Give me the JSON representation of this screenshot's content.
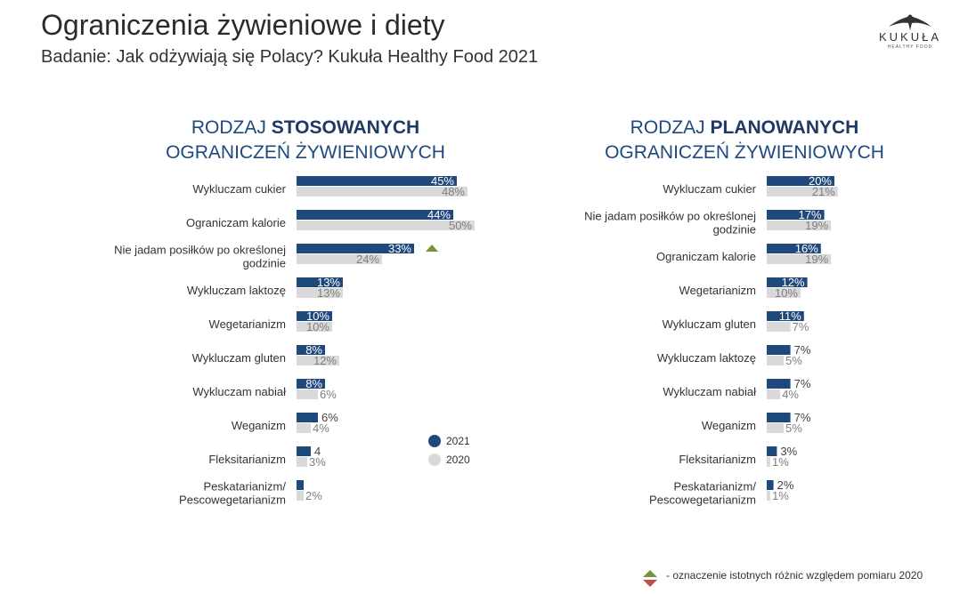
{
  "header": {
    "title": "Ograniczenia żywieniowe i diety",
    "subtitle": "Badanie: Jak odżywiają się Polacy? Kukuła Healthy Food 2021"
  },
  "logo": {
    "name": "KUKUŁA",
    "tagline": "HEALTHY FOOD"
  },
  "colors": {
    "series_2021": "#1f497d",
    "series_2020": "#d9d9d9",
    "significance_up": "#77933c",
    "significance_down": "#c0504d"
  },
  "legend": {
    "label_2021": "2021",
    "label_2020": "2020"
  },
  "footnote": "- oznaczenie istotnych różnic względem pomiaru 2020",
  "chart_data": [
    {
      "type": "bar",
      "orientation": "horizontal",
      "title_prefix": "RODZAJ ",
      "title_bold": "STOSOWANYCH",
      "title_line2": "OGRANICZEŃ ŻYWIENIOWYCH",
      "categories": [
        "Wykluczam cukier",
        "Ograniczam kalorie",
        "Nie jadam posiłków po określonej godzinie",
        "Wykluczam laktozę",
        "Wegetarianizm",
        "Wykluczam gluten",
        "Wykluczam nabiał",
        "Weganizm",
        "Fleksitarianizm",
        "Peskatarianizm/ Pescowegetarianizm"
      ],
      "series": [
        {
          "name": "2021",
          "values": [
            45,
            44,
            33,
            13,
            10,
            8,
            8,
            6,
            4,
            2
          ],
          "labels": [
            "45%",
            "44%",
            "33%",
            "13%",
            "10%",
            "8%",
            "8%",
            "6%",
            "4",
            ""
          ]
        },
        {
          "name": "2020",
          "values": [
            48,
            50,
            24,
            13,
            10,
            12,
            6,
            4,
            3,
            2
          ],
          "labels": [
            "48%",
            "50%",
            "24%",
            "13%",
            "10%",
            "12%",
            "6%",
            "4%",
            "3%",
            "2%"
          ]
        }
      ],
      "significant_increase": [
        "Nie jadam posiłków po określonej godzinie"
      ],
      "xlim": [
        0,
        100
      ]
    },
    {
      "type": "bar",
      "orientation": "horizontal",
      "title_prefix": "RODZAJ ",
      "title_bold": "PLANOWANYCH",
      "title_line2": "OGRANICZEŃ ŻYWIENIOWYCH",
      "categories": [
        "Wykluczam cukier",
        "Nie jadam posiłków po określonej godzinie",
        "Ograniczam kalorie",
        "Wegetarianizm",
        "Wykluczam gluten",
        "Wykluczam laktozę",
        "Wykluczam nabiał",
        "Weganizm",
        "Fleksitarianizm",
        "Peskatarianizm/ Pescowegetarianizm"
      ],
      "series": [
        {
          "name": "2021",
          "values": [
            20,
            17,
            16,
            12,
            11,
            7,
            7,
            7,
            3,
            2
          ],
          "labels": [
            "20%",
            "17%",
            "16%",
            "12%",
            "11%",
            "7%",
            "7%",
            "7%",
            "3%",
            "2%"
          ]
        },
        {
          "name": "2020",
          "values": [
            21,
            19,
            19,
            10,
            7,
            5,
            4,
            5,
            1,
            1
          ],
          "labels": [
            "21%",
            "19%",
            "19%",
            "10%",
            "7%",
            "5%",
            "4%",
            "5%",
            "1%",
            "1%"
          ]
        }
      ],
      "significant_increase": [],
      "xlim": [
        0,
        100
      ]
    }
  ]
}
